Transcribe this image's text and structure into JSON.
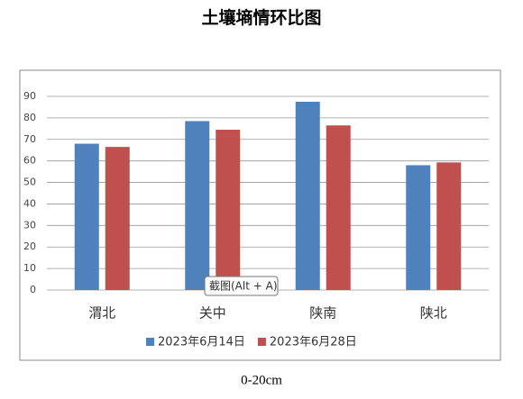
{
  "chart_data": {
    "type": "bar",
    "title": "土壤墒情环比图",
    "subtitle": "0-20cm",
    "categories": [
      "渭北",
      "关中",
      "陕南",
      "陕北"
    ],
    "series": [
      {
        "name": "2023年6月14日",
        "color": "#4f81bd",
        "values": [
          68,
          78.5,
          87.5,
          58
        ]
      },
      {
        "name": "2023年6月28日",
        "color": "#c0504d",
        "values": [
          66.5,
          74.5,
          76.5,
          59.3
        ]
      }
    ],
    "ylim": [
      0,
      90
    ],
    "yticks": [
      0,
      10,
      20,
      30,
      40,
      50,
      60,
      70,
      80,
      90
    ],
    "grid": true,
    "legend": "bottom"
  },
  "tooltip": "截图(Alt + A)"
}
